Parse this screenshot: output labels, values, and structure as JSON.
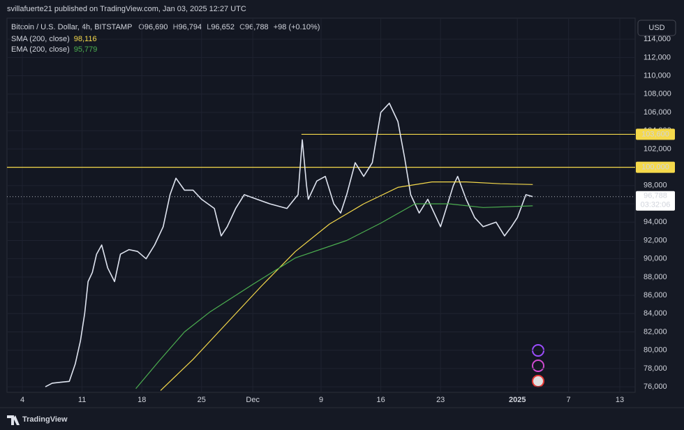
{
  "page": {
    "published": "svillafuerte21 published on TradingView.com, Jan 03, 2025 12:27 UTC",
    "brand": "TradingView",
    "currency": "USD"
  },
  "chart_data": {
    "type": "line",
    "title": "Bitcoin / U.S. Dollar, 4h, BITSTAMP",
    "ohlc_labels": [
      "O",
      "H",
      "L",
      "C"
    ],
    "ohlc_values": [
      "96,690",
      "96,794",
      "96,652",
      "96,788"
    ],
    "change": "+98 (+0.10%)",
    "indicators": [
      {
        "name": "SMA (200, close)",
        "value_label": "98,116",
        "color": "#f5d94b"
      },
      {
        "name": "EMA (200, close)",
        "value_label": "95,779",
        "color": "#4caf50"
      }
    ],
    "xlim": [
      2.2,
      75.8
    ],
    "xticks": [
      4,
      11,
      18,
      25,
      {
        "value": 31,
        "label": "Dec"
      },
      {
        "value": 39,
        "label": "9"
      },
      {
        "value": 46,
        "label": "16"
      },
      {
        "value": 53,
        "label": "23"
      },
      {
        "value": 62,
        "label": "2025"
      },
      {
        "value": 68,
        "label": "7"
      },
      {
        "value": 74,
        "label": "13"
      }
    ],
    "ylim": [
      75400,
      116300
    ],
    "yticks": [
      {
        "value": 76000,
        "label": "76,000"
      },
      {
        "value": 78000,
        "label": "78,000"
      },
      {
        "value": 80000,
        "label": "80,000"
      },
      {
        "value": 82000,
        "label": "82,000"
      },
      {
        "value": 84000,
        "label": "84,000"
      },
      {
        "value": 86000,
        "label": "86,000"
      },
      {
        "value": 88000,
        "label": "88,000"
      },
      {
        "value": 90000,
        "label": "90,000"
      },
      {
        "value": 92000,
        "label": "92,000"
      },
      {
        "value": 94000,
        "label": "94,000"
      },
      {
        "value": 96000,
        "label": "96,000"
      },
      {
        "value": 98000,
        "label": "98,000"
      },
      {
        "value": 100000,
        "label": "100,000"
      },
      {
        "value": 102000,
        "label": "102,000"
      },
      {
        "value": 104000,
        "label": "104,000"
      },
      {
        "value": 106000,
        "label": "106,000"
      },
      {
        "value": 108000,
        "label": "108,000"
      },
      {
        "value": 110000,
        "label": "110,000"
      },
      {
        "value": 112000,
        "label": "112,000"
      },
      {
        "value": 114000,
        "label": "114,000"
      }
    ],
    "grid": true,
    "series": [
      {
        "color": "#dfe4f0",
        "x": [
          6.7,
          7.5,
          8.5,
          9.5,
          10.2,
          10.8,
          11.3,
          11.7,
          12.2,
          12.7,
          13.3,
          14,
          14.8,
          15.5,
          16.5,
          17.5,
          18.5,
          19.5,
          20.5,
          21.3,
          22,
          23,
          24,
          25,
          26.5,
          27.3,
          28,
          29,
          30,
          31.5,
          33,
          35,
          36.3,
          36.8,
          37.3,
          37.5,
          38.5,
          39.5,
          40.5,
          41.3,
          42,
          43,
          44,
          45,
          46,
          46.5,
          47,
          48,
          48.8,
          49.5,
          50.5,
          51.5,
          52.5,
          53,
          54.5,
          55,
          56,
          57,
          58,
          59.5,
          60.5,
          61.3,
          62,
          63,
          63.8
        ],
        "values": [
          76000,
          76400,
          76500,
          76600,
          78500,
          81000,
          84000,
          87500,
          88500,
          90500,
          91500,
          89000,
          87500,
          90500,
          91000,
          90800,
          90000,
          91500,
          93500,
          97000,
          98800,
          97500,
          97500,
          96500,
          95500,
          92500,
          93500,
          95500,
          97000,
          96500,
          96000,
          95500,
          97000,
          103000,
          98000,
          96500,
          98500,
          99000,
          96000,
          95000,
          97000,
          100500,
          99000,
          100500,
          106000,
          106500,
          107000,
          105000,
          101000,
          97000,
          95000,
          96500,
          94500,
          93500,
          98000,
          99000,
          96500,
          94500,
          93500,
          94000,
          92500,
          93500,
          94500,
          97000,
          96788
        ]
      },
      {
        "color": "#f5d94b",
        "x": [
          20.2,
          24,
          28,
          32,
          36,
          40,
          44,
          48,
          52,
          56,
          60,
          63.8
        ],
        "values": [
          75600,
          79000,
          83000,
          87000,
          90800,
          93800,
          96000,
          97800,
          98400,
          98400,
          98200,
          98116
        ]
      },
      {
        "color": "#4caf50",
        "x": [
          17.3,
          20,
          23,
          26,
          31,
          36,
          42,
          46,
          50,
          54,
          58,
          63.8
        ],
        "values": [
          75800,
          78800,
          82000,
          84200,
          87200,
          90100,
          92000,
          93900,
          96000,
          96000,
          95600,
          95779
        ]
      }
    ],
    "levels": [
      {
        "value": 103600,
        "label": "103,600",
        "x_start": 36.7,
        "color": "#f5d94b"
      },
      {
        "value": 100000,
        "label": "100,000",
        "x_start": 2.2,
        "color": "#f5d94b"
      }
    ],
    "last_price": {
      "value": 96788,
      "label": "96,788",
      "countdown": "03:32:06"
    }
  }
}
